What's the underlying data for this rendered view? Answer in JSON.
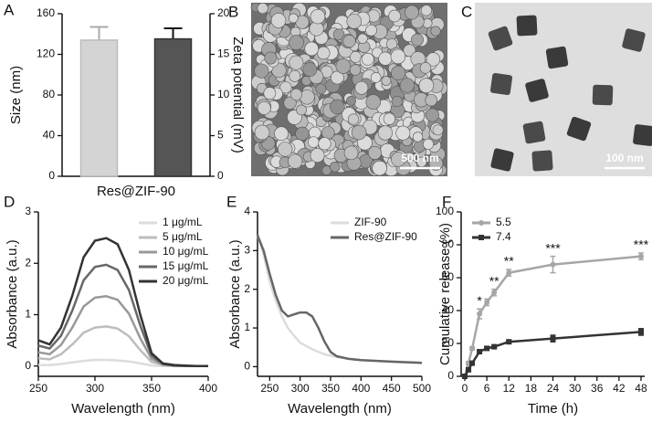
{
  "chart_data": [
    {
      "type": "bar",
      "panel": "A",
      "category": "Res@ZIF-90",
      "ylabel": "Size (nm)",
      "y2label": "Zeta potential (mV)",
      "ylim": [
        0,
        160
      ],
      "yticks": [
        0,
        40,
        80,
        120,
        160
      ],
      "y2lim": [
        0,
        20
      ],
      "y2ticks": [
        0,
        5,
        10,
        15,
        20
      ],
      "series": [
        {
          "color": "#d4d4d4",
          "values": [
            134
          ],
          "errors": [
            13
          ]
        },
        {
          "color": "#555555",
          "values": [
            16.9
          ],
          "errors": [
            1.3
          ],
          "axis": "y2"
        }
      ]
    },
    {
      "type": "image",
      "panel": "B",
      "scale_bar": "500 nm",
      "style": "sem"
    },
    {
      "type": "image",
      "panel": "C",
      "scale_bar": "100 nm",
      "style": "tem"
    },
    {
      "type": "line",
      "panel": "D",
      "xlabel": "Wavelength (nm)",
      "ylabel": "Absorbance (a.u.)",
      "x": [
        250,
        260,
        270,
        280,
        290,
        300,
        310,
        320,
        330,
        340,
        350,
        360,
        370,
        380,
        390,
        400
      ],
      "xlim": [
        250,
        400
      ],
      "xticks": [
        250,
        300,
        350,
        400
      ],
      "ylim": [
        -0.2,
        3
      ],
      "yticks": [
        0,
        1,
        2,
        3
      ],
      "legend": "upper right",
      "series": [
        {
          "name": "1 μg/mL",
          "color": "#dcdcdc",
          "values": [
            0.02,
            0.02,
            0.04,
            0.07,
            0.1,
            0.12,
            0.12,
            0.11,
            0.09,
            0.05,
            0.01,
            0,
            0,
            0,
            0,
            0
          ]
        },
        {
          "name": "5 μg/mL",
          "color": "#bdbdbd",
          "values": [
            0.15,
            0.13,
            0.23,
            0.42,
            0.65,
            0.75,
            0.77,
            0.73,
            0.58,
            0.31,
            0.08,
            0.02,
            0,
            0,
            0,
            0
          ]
        },
        {
          "name": "10 μg/mL",
          "color": "#999999",
          "values": [
            0.27,
            0.23,
            0.41,
            0.75,
            1.16,
            1.33,
            1.36,
            1.29,
            1.02,
            0.54,
            0.14,
            0.03,
            0.01,
            0,
            0,
            0
          ]
        },
        {
          "name": "15 μg/mL",
          "color": "#676767",
          "values": [
            0.4,
            0.34,
            0.59,
            1.08,
            1.67,
            1.93,
            1.97,
            1.87,
            1.48,
            0.79,
            0.2,
            0.04,
            0.01,
            0,
            0,
            0
          ]
        },
        {
          "name": "20 μg/mL",
          "color": "#333333",
          "values": [
            0.5,
            0.42,
            0.75,
            1.37,
            2.12,
            2.44,
            2.49,
            2.37,
            1.87,
            1.0,
            0.25,
            0.05,
            0.02,
            0.01,
            0,
            0
          ]
        }
      ]
    },
    {
      "type": "line",
      "panel": "E",
      "xlabel": "Wavelength (nm)",
      "ylabel": "Absorbance (a.u.)",
      "xlim": [
        230,
        500
      ],
      "xticks": [
        250,
        300,
        350,
        400,
        450,
        500
      ],
      "ylim": [
        -0.25,
        4
      ],
      "yticks": [
        0,
        1,
        2,
        3,
        4
      ],
      "legend": "upper right",
      "series": [
        {
          "name": "ZIF-90",
          "color": "#dcdcdc",
          "x": [
            230,
            240,
            250,
            260,
            270,
            280,
            290,
            300,
            320,
            340,
            360,
            380,
            400,
            450,
            500
          ],
          "values": [
            3.4,
            2.9,
            2.2,
            1.7,
            1.3,
            1.0,
            0.8,
            0.62,
            0.45,
            0.32,
            0.25,
            0.2,
            0.17,
            0.12,
            0.1
          ]
        },
        {
          "name": "Res@ZIF-90",
          "color": "#666666",
          "x": [
            230,
            240,
            250,
            260,
            270,
            280,
            290,
            300,
            310,
            320,
            330,
            340,
            350,
            360,
            380,
            400,
            450,
            500
          ],
          "values": [
            3.4,
            3.0,
            2.4,
            1.85,
            1.45,
            1.3,
            1.35,
            1.4,
            1.4,
            1.3,
            1.0,
            0.65,
            0.38,
            0.27,
            0.2,
            0.17,
            0.13,
            0.1
          ]
        }
      ]
    },
    {
      "type": "line",
      "panel": "F",
      "xlabel": "Time (h)",
      "ylabel": "Cumulative release (%)",
      "x": [
        0,
        1,
        2,
        4,
        6,
        8,
        12,
        24,
        48
      ],
      "xlim": [
        -1,
        49
      ],
      "xticks": [
        0,
        6,
        12,
        18,
        24,
        30,
        36,
        42,
        48
      ],
      "ylim": [
        0,
        100
      ],
      "yticks": [
        0,
        20,
        40,
        60,
        80,
        100
      ],
      "legend": "upper left",
      "series": [
        {
          "name": "5.5",
          "color": "#a6a6a6",
          "marker": "circle",
          "values": [
            0,
            8,
            17,
            38,
            45,
            51,
            63,
            68,
            73
          ],
          "errors": [
            0,
            1,
            1,
            3,
            2,
            2,
            2,
            5,
            2
          ]
        },
        {
          "name": "7.4",
          "color": "#333333",
          "marker": "square",
          "values": [
            0,
            4,
            8,
            15,
            17,
            18,
            21,
            23,
            27
          ],
          "errors": [
            0,
            1,
            1,
            1,
            1,
            1,
            1,
            2,
            2
          ]
        }
      ],
      "annotations": [
        {
          "x": 4,
          "text": "*"
        },
        {
          "x": 8,
          "text": "**"
        },
        {
          "x": 12,
          "text": "**"
        },
        {
          "x": 24,
          "text": "***"
        },
        {
          "x": 48,
          "text": "***"
        }
      ]
    }
  ]
}
